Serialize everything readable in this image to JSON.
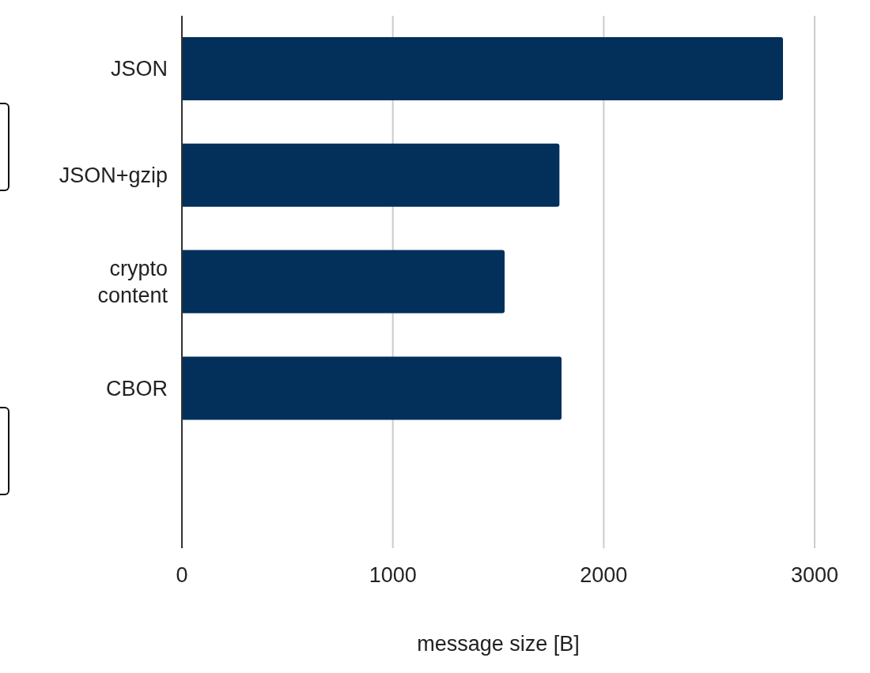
{
  "chart_data": {
    "type": "bar",
    "orientation": "horizontal",
    "xlabel": "message size [B]",
    "categories": [
      "JSON",
      "JSON+gzip",
      "crypto content",
      "CBOR",
      null
    ],
    "values": [
      2850,
      1790,
      1530,
      1800,
      null
    ],
    "color": "#03305a",
    "xlim": [
      0,
      3000
    ],
    "xticks": [
      0,
      1000,
      2000,
      3000
    ],
    "grid": "x"
  }
}
